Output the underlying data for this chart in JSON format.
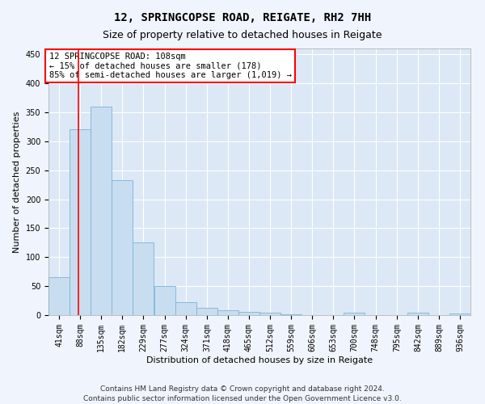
{
  "title": "12, SPRINGCOPSE ROAD, REIGATE, RH2 7HH",
  "subtitle": "Size of property relative to detached houses in Reigate",
  "xlabel": "Distribution of detached houses by size in Reigate",
  "ylabel": "Number of detached properties",
  "footnote1": "Contains HM Land Registry data © Crown copyright and database right 2024.",
  "footnote2": "Contains public sector information licensed under the Open Government Licence v3.0.",
  "annotation_line1": "12 SPRINGCOPSE ROAD: 108sqm",
  "annotation_line2": "← 15% of detached houses are smaller (178)",
  "annotation_line3": "85% of semi-detached houses are larger (1,019) →",
  "bar_color": "#c9ddf0",
  "bar_edge_color": "#7ab4d8",
  "red_line_x": 108,
  "bins": [
    41,
    88,
    135,
    182,
    229,
    277,
    324,
    371,
    418,
    465,
    512,
    559,
    606,
    653,
    700,
    748,
    795,
    842,
    889,
    936,
    983
  ],
  "values": [
    65,
    320,
    360,
    233,
    125,
    50,
    23,
    13,
    8,
    5,
    4,
    1,
    0,
    0,
    4,
    0,
    0,
    4,
    0,
    3
  ],
  "ylim": [
    0,
    460
  ],
  "yticks": [
    0,
    50,
    100,
    150,
    200,
    250,
    300,
    350,
    400,
    450
  ],
  "background_color": "#dce8f5",
  "grid_color": "#ffffff",
  "fig_background": "#f0f4fc",
  "title_fontsize": 10,
  "subtitle_fontsize": 9,
  "axis_label_fontsize": 8,
  "tick_fontsize": 7,
  "annotation_fontsize": 7.5,
  "footnote_fontsize": 6.5
}
